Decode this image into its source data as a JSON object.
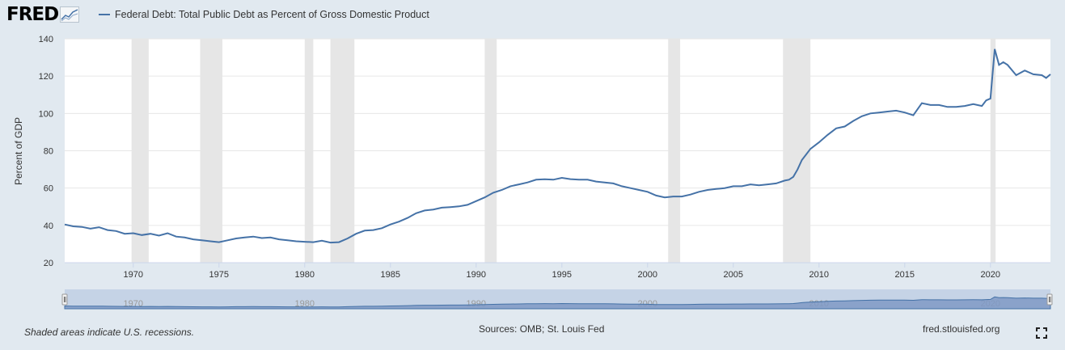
{
  "logo": {
    "text": "FRED"
  },
  "legend": {
    "label": "Federal Debt: Total Public Debt as Percent of Gross Domestic Product"
  },
  "chart_data": {
    "type": "line",
    "title": "",
    "xlabel": "",
    "ylabel": "Percent of GDP",
    "xlim": [
      1966,
      2023.5
    ],
    "ylim": [
      20,
      140
    ],
    "yticks": [
      20,
      40,
      60,
      80,
      100,
      120,
      140
    ],
    "xticks": [
      1970,
      1975,
      1980,
      1985,
      1990,
      1995,
      2000,
      2005,
      2010,
      2015,
      2020
    ],
    "grid": true,
    "legend_position": "top-left",
    "line_color": "#4572a7",
    "recession_color": "#e6e6e6",
    "recessions": [
      [
        1969.9,
        1970.9
      ],
      [
        1973.9,
        1975.2
      ],
      [
        1980.0,
        1980.5
      ],
      [
        1981.5,
        1982.9
      ],
      [
        1990.5,
        1991.2
      ],
      [
        2001.2,
        2001.9
      ],
      [
        2007.9,
        2009.5
      ],
      [
        2020.0,
        2020.3
      ]
    ],
    "series": [
      {
        "name": "Federal Debt: Total Public Debt as Percent of Gross Domestic Product",
        "x": [
          1966.0,
          1966.5,
          1967.0,
          1967.5,
          1968.0,
          1968.5,
          1969.0,
          1969.5,
          1970.0,
          1970.5,
          1971.0,
          1971.5,
          1972.0,
          1972.5,
          1973.0,
          1973.5,
          1974.0,
          1974.5,
          1975.0,
          1975.5,
          1976.0,
          1976.5,
          1977.0,
          1977.5,
          1978.0,
          1978.5,
          1979.0,
          1979.5,
          1980.0,
          1980.5,
          1981.0,
          1981.5,
          1982.0,
          1982.5,
          1983.0,
          1983.5,
          1984.0,
          1984.5,
          1985.0,
          1985.5,
          1986.0,
          1986.5,
          1987.0,
          1987.5,
          1988.0,
          1988.5,
          1989.0,
          1989.5,
          1990.0,
          1990.5,
          1991.0,
          1991.5,
          1992.0,
          1992.5,
          1993.0,
          1993.5,
          1994.0,
          1994.5,
          1995.0,
          1995.5,
          1996.0,
          1996.5,
          1997.0,
          1997.5,
          1998.0,
          1998.5,
          1999.0,
          1999.5,
          2000.0,
          2000.5,
          2001.0,
          2001.5,
          2002.0,
          2002.5,
          2003.0,
          2003.5,
          2004.0,
          2004.5,
          2005.0,
          2005.5,
          2006.0,
          2006.5,
          2007.0,
          2007.5,
          2008.0,
          2008.25,
          2008.5,
          2008.75,
          2009.0,
          2009.25,
          2009.5,
          2010.0,
          2010.5,
          2011.0,
          2011.5,
          2012.0,
          2012.5,
          2013.0,
          2013.5,
          2014.0,
          2014.5,
          2015.0,
          2015.5,
          2016.0,
          2016.5,
          2017.0,
          2017.5,
          2018.0,
          2018.5,
          2019.0,
          2019.5,
          2019.75,
          2020.0,
          2020.25,
          2020.5,
          2020.75,
          2021.0,
          2021.5,
          2022.0,
          2022.5,
          2023.0,
          2023.25,
          2023.5
        ],
        "values": [
          40.5,
          39.5,
          39.2,
          38.3,
          39.0,
          37.5,
          37.0,
          35.5,
          35.8,
          34.8,
          35.5,
          34.5,
          35.8,
          34.0,
          33.5,
          32.5,
          32.0,
          31.5,
          31.0,
          32.0,
          33.0,
          33.5,
          34.0,
          33.2,
          33.5,
          32.5,
          32.0,
          31.5,
          31.2,
          31.0,
          31.8,
          30.8,
          31.0,
          33.0,
          35.5,
          37.2,
          37.5,
          38.5,
          40.5,
          42.0,
          44.0,
          46.5,
          48.0,
          48.5,
          49.5,
          49.8,
          50.2,
          51.0,
          53.0,
          55.0,
          57.5,
          59.0,
          61.0,
          62.0,
          63.0,
          64.5,
          64.7,
          64.5,
          65.5,
          64.8,
          64.5,
          64.5,
          63.5,
          63.0,
          62.5,
          61.0,
          60.0,
          59.0,
          58.0,
          56.0,
          55.0,
          55.5,
          55.5,
          56.5,
          58.0,
          59.0,
          59.5,
          60.0,
          61.0,
          61.0,
          62.0,
          61.5,
          62.0,
          62.5,
          64.0,
          64.5,
          66.0,
          70.0,
          75.0,
          78.0,
          81.0,
          84.5,
          88.5,
          92.0,
          93.0,
          96.0,
          98.5,
          100.0,
          100.5,
          101.0,
          101.5,
          100.5,
          99.0,
          105.5,
          104.5,
          104.5,
          103.5,
          103.5,
          104.0,
          105.0,
          104.0,
          107.0,
          108.0,
          134.5,
          126.0,
          127.5,
          126.0,
          120.5,
          123.0,
          121.0,
          120.5,
          119.0,
          121.0
        ]
      }
    ]
  },
  "navigator": {
    "labels": [
      "1970",
      "1980",
      "1990",
      "2000",
      "2010",
      "2020"
    ],
    "label_years": [
      1970,
      1980,
      1990,
      2000,
      2010,
      2020
    ]
  },
  "footer": {
    "note": "Shaded areas indicate U.S. recessions.",
    "sources": "Sources: OMB; St. Louis Fed",
    "url": "fred.stlouisfed.org"
  },
  "icons": {
    "fullscreen": "fullscreen-icon",
    "logo_spark": "sparkline-icon"
  }
}
